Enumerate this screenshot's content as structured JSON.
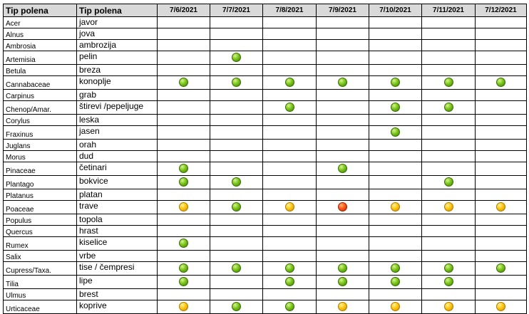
{
  "header": {
    "latin_col": "Tip polena",
    "local_col": "Tip polena",
    "dates": [
      "7/6/2021",
      "7/7/2021",
      "7/8/2021",
      "7/9/2021",
      "7/10/2021",
      "7/11/2021",
      "7/12/2021"
    ]
  },
  "level_colors": {
    "green": "#7cc61c",
    "yellow": "#ffc812",
    "red": "#ff5a1a"
  },
  "rows": [
    {
      "latin": "Acer",
      "local": "javor",
      "days": [
        "",
        "",
        "",
        "",
        "",
        "",
        ""
      ]
    },
    {
      "latin": "Alnus",
      "local": "jova",
      "days": [
        "",
        "",
        "",
        "",
        "",
        "",
        ""
      ]
    },
    {
      "latin": "Ambrosia",
      "local": "ambrozija",
      "days": [
        "",
        "",
        "",
        "",
        "",
        "",
        ""
      ]
    },
    {
      "latin": "Artemisia",
      "local": "pelin",
      "days": [
        "",
        "green",
        "",
        "",
        "",
        "",
        ""
      ]
    },
    {
      "latin": "Betula",
      "local": "breza",
      "days": [
        "",
        "",
        "",
        "",
        "",
        "",
        ""
      ]
    },
    {
      "latin": "Cannabaceae",
      "local": "konoplje",
      "days": [
        "green",
        "green",
        "green",
        "green",
        "green",
        "green",
        "green"
      ]
    },
    {
      "latin": "Carpinus",
      "local": "grab",
      "days": [
        "",
        "",
        "",
        "",
        "",
        "",
        ""
      ]
    },
    {
      "latin": "Chenop/Amar.",
      "local": "štirevi /pepeljuge",
      "days": [
        "",
        "",
        "green",
        "",
        "green",
        "green",
        ""
      ]
    },
    {
      "latin": "Corylus",
      "local": "leska",
      "days": [
        "",
        "",
        "",
        "",
        "",
        "",
        ""
      ]
    },
    {
      "latin": "Fraxinus",
      "local": "jasen",
      "days": [
        "",
        "",
        "",
        "",
        "green",
        "",
        ""
      ]
    },
    {
      "latin": "Juglans",
      "local": "orah",
      "days": [
        "",
        "",
        "",
        "",
        "",
        "",
        ""
      ]
    },
    {
      "latin": "Morus",
      "local": "dud",
      "days": [
        "",
        "",
        "",
        "",
        "",
        "",
        ""
      ]
    },
    {
      "latin": "Pinaceae",
      "local": "četinari",
      "days": [
        "green",
        "",
        "",
        "green",
        "",
        "",
        ""
      ]
    },
    {
      "latin": "Plantago",
      "local": "bokvice",
      "days": [
        "green",
        "green",
        "",
        "",
        "",
        "green",
        ""
      ]
    },
    {
      "latin": "Platanus",
      "local": "platan",
      "days": [
        "",
        "",
        "",
        "",
        "",
        "",
        ""
      ]
    },
    {
      "latin": "Poaceae",
      "local": "trave",
      "days": [
        "yellow",
        "green",
        "yellow",
        "red",
        "yellow",
        "yellow",
        "yellow"
      ]
    },
    {
      "latin": "Populus",
      "local": "topola",
      "days": [
        "",
        "",
        "",
        "",
        "",
        "",
        ""
      ]
    },
    {
      "latin": "Quercus",
      "local": "hrast",
      "days": [
        "",
        "",
        "",
        "",
        "",
        "",
        ""
      ]
    },
    {
      "latin": "Rumex",
      "local": "kiselice",
      "days": [
        "green",
        "",
        "",
        "",
        "",
        "",
        ""
      ]
    },
    {
      "latin": "Salix",
      "local": "vrbe",
      "days": [
        "",
        "",
        "",
        "",
        "",
        "",
        ""
      ]
    },
    {
      "latin": "Cupress/Taxa.",
      "local": "tise / čempresi",
      "days": [
        "green",
        "green",
        "green",
        "green",
        "green",
        "green",
        "green"
      ]
    },
    {
      "latin": "Tilia",
      "local": "lipe",
      "days": [
        "green",
        "",
        "green",
        "green",
        "green",
        "green",
        ""
      ]
    },
    {
      "latin": "Ulmus",
      "local": "brest",
      "days": [
        "",
        "",
        "",
        "",
        "",
        "",
        ""
      ]
    },
    {
      "latin": "Urticaceae",
      "local": "koprive",
      "days": [
        "yellow",
        "green",
        "green",
        "yellow",
        "yellow",
        "yellow",
        "yellow"
      ]
    }
  ]
}
